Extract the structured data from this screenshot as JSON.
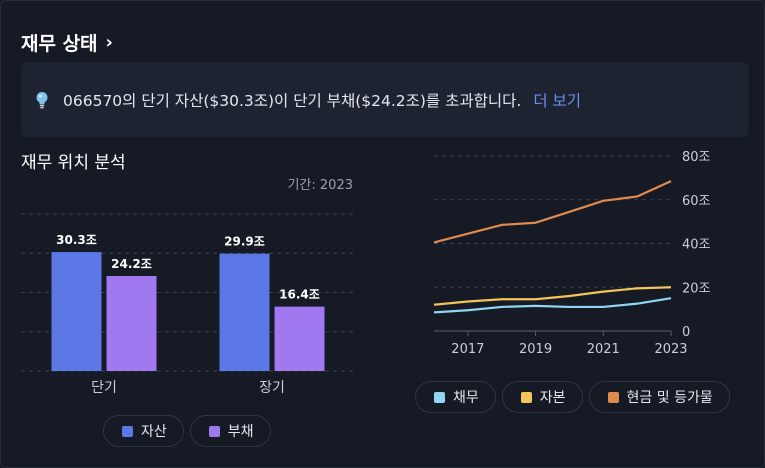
{
  "header": {
    "title": "재무 상태",
    "chevron": "›"
  },
  "banner": {
    "icon": "lightbulb-icon",
    "message": "066570의 단기 자산($30.3조)이 단기 부채($24.2조)를 초과합니다.",
    "more_label": "더 보기"
  },
  "section": {
    "title": "재무 위치 분석",
    "period": "기간: 2023"
  },
  "colors": {
    "asset": "#5b78e6",
    "liability": "#a078f0",
    "debt": "#8fd6f5",
    "equity": "#f2c45a",
    "cash": "#e08a4e",
    "accent_link": "#6b8ef0"
  },
  "legend_left": [
    {
      "label": "자산",
      "color": "#5b78e6"
    },
    {
      "label": "부채",
      "color": "#a078f0"
    }
  ],
  "legend_right": [
    {
      "label": "채무",
      "color": "#8fd6f5"
    },
    {
      "label": "자본",
      "color": "#f2c45a"
    },
    {
      "label": "현금 및 등가물",
      "color": "#e08a4e"
    }
  ],
  "chart_data": [
    {
      "type": "bar",
      "categories": [
        "단기",
        "장기"
      ],
      "series": [
        {
          "name": "자산",
          "values": [
            30.3,
            29.9
          ],
          "labels": [
            "30.3조",
            "29.9조"
          ]
        },
        {
          "name": "부채",
          "values": [
            24.2,
            16.4
          ],
          "labels": [
            "24.2조",
            "16.4조"
          ]
        }
      ],
      "ylim": [
        0,
        40
      ],
      "grid": true
    },
    {
      "type": "line",
      "x": [
        2016,
        2017,
        2018,
        2019,
        2020,
        2021,
        2022,
        2023
      ],
      "xticks": [
        "2017",
        "2019",
        "2021",
        "2023"
      ],
      "yticks": [
        "0",
        "20조",
        "40조",
        "60조",
        "80조"
      ],
      "ylim": [
        0,
        80
      ],
      "series": [
        {
          "name": "채무",
          "values": [
            8.5,
            9.5,
            11,
            11.5,
            11,
            11,
            12.5,
            15
          ]
        },
        {
          "name": "자본",
          "values": [
            12,
            13.5,
            14.5,
            14.5,
            16,
            18,
            19.5,
            20
          ]
        },
        {
          "name": "현금 및 등가물",
          "values": [
            40.5,
            44.5,
            48.5,
            49.5,
            54.5,
            59.5,
            61.5,
            68.5
          ]
        }
      ],
      "grid": true
    }
  ]
}
